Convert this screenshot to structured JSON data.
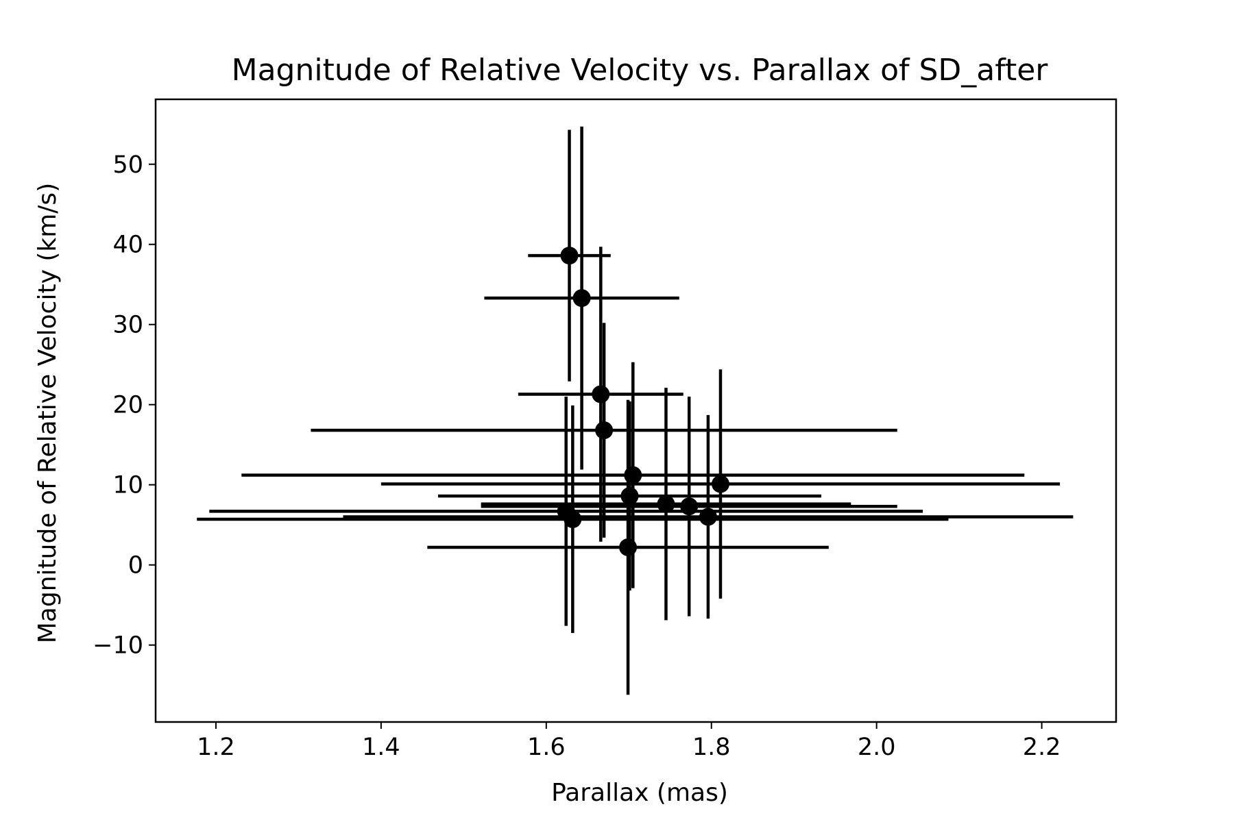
{
  "chart_data": {
    "type": "scatter",
    "title": "Magnitude of Relative Velocity vs. Parallax of SD_after",
    "xlabel": "Parallax (mas)",
    "ylabel": "Magnitude of Relative Velocity (km/s)",
    "xlim": [
      1.127,
      2.29
    ],
    "ylim": [
      -19.6,
      58.1
    ],
    "xticks": [
      1.2,
      1.4,
      1.6,
      1.8,
      2.0,
      2.2
    ],
    "xtick_labels": [
      "1.2",
      "1.4",
      "1.6",
      "1.8",
      "2.0",
      "2.2"
    ],
    "yticks": [
      -10,
      0,
      10,
      20,
      30,
      40,
      50
    ],
    "ytick_labels": [
      "−10",
      "0",
      "10",
      "20",
      "30",
      "40",
      "50"
    ],
    "grid": false,
    "legend": "none",
    "marker_color": "#000000",
    "series": [
      {
        "points": [
          {
            "x": 1.628,
            "y": 38.6,
            "xerr": 0.05,
            "yerr": 15.7
          },
          {
            "x": 1.643,
            "y": 33.3,
            "xerr": 0.118,
            "yerr": 21.4
          },
          {
            "x": 1.666,
            "y": 21.3,
            "xerr": 0.1,
            "yerr": 18.4
          },
          {
            "x": 1.67,
            "y": 16.8,
            "xerr": 0.355,
            "yerr": 13.4
          },
          {
            "x": 1.705,
            "y": 11.2,
            "xerr": 0.474,
            "yerr": 14.1
          },
          {
            "x": 1.811,
            "y": 10.1,
            "xerr": 0.411,
            "yerr": 14.3
          },
          {
            "x": 1.701,
            "y": 8.6,
            "xerr": 0.232,
            "yerr": 11.8
          },
          {
            "x": 1.745,
            "y": 7.6,
            "xerr": 0.224,
            "yerr": 14.5
          },
          {
            "x": 1.773,
            "y": 7.3,
            "xerr": 0.252,
            "yerr": 13.7
          },
          {
            "x": 1.624,
            "y": 6.7,
            "xerr": 0.432,
            "yerr": 14.3
          },
          {
            "x": 1.796,
            "y": 6.0,
            "xerr": 0.442,
            "yerr": 12.7
          },
          {
            "x": 1.632,
            "y": 5.7,
            "xerr": 0.455,
            "yerr": 14.2
          },
          {
            "x": 1.699,
            "y": 2.2,
            "xerr": 0.243,
            "yerr": 18.4
          }
        ]
      }
    ]
  }
}
